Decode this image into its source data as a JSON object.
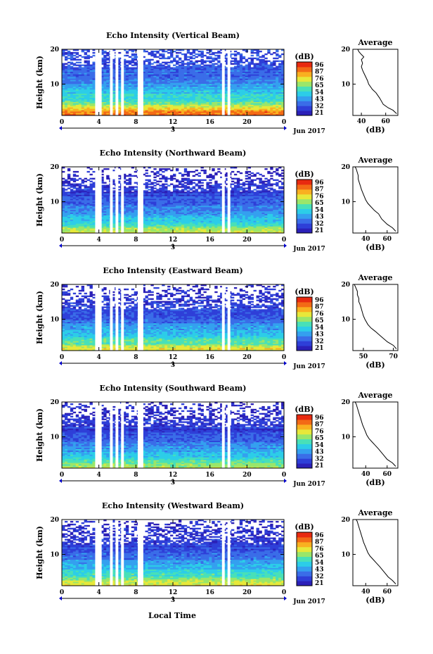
{
  "figure": {
    "xaxis_label": "Local Time",
    "colormap": [
      "#2b20b8",
      "#2e3fd8",
      "#3a6de8",
      "#34a0ef",
      "#2ccde8",
      "#48e0b8",
      "#9ae66a",
      "#e7e83a",
      "#f9b020",
      "#f36a16",
      "#e82a10"
    ]
  },
  "chart_data": [
    {
      "type": "heatmap",
      "title": "Echo Intensity (Vertical Beam)",
      "ylabel": "Height (km)",
      "y_ticks": [
        10,
        20
      ],
      "ylim": [
        1,
        20
      ],
      "x_ticks": [
        "0",
        "4",
        "8",
        "12",
        "16",
        "20",
        "0"
      ],
      "xlim": [
        0,
        24
      ],
      "date_ticks": [
        "3"
      ],
      "date_label": "Jun 2017",
      "gaps_hours": [
        [
          3.6,
          4.3
        ],
        [
          5.2,
          5.5
        ],
        [
          5.8,
          6.1
        ],
        [
          6.4,
          6.7
        ],
        [
          8.2,
          8.8
        ],
        [
          17.3,
          17.6
        ],
        [
          17.9,
          18.2
        ]
      ],
      "colorbar": {
        "label": "(dB)",
        "ticks": [
          "96",
          "87",
          "76",
          "65",
          "54",
          "43",
          "32",
          "21"
        ]
      },
      "profile": {
        "title": "Average",
        "xlabel": "(dB)",
        "x_ticks": [
          "40",
          "60"
        ],
        "xlim": [
          33,
          70
        ],
        "y_ticks": [
          10,
          20
        ],
        "points": [
          [
            69,
            1.5
          ],
          [
            66,
            2.5
          ],
          [
            62,
            3.2
          ],
          [
            58,
            4.2
          ],
          [
            55,
            6.0
          ],
          [
            52,
            7.5
          ],
          [
            49,
            8.5
          ],
          [
            46,
            10.0
          ],
          [
            45,
            11.0
          ],
          [
            43,
            12.5
          ],
          [
            42,
            13.2
          ],
          [
            41,
            14.0
          ],
          [
            40,
            15.0
          ],
          [
            41,
            16.0
          ],
          [
            40,
            17.0
          ],
          [
            42,
            17.8
          ],
          [
            40,
            18.5
          ],
          [
            38,
            19.3
          ],
          [
            37,
            20.0
          ]
        ]
      },
      "intensity_profile": [
        [
          1,
          0.9
        ],
        [
          2,
          0.84
        ],
        [
          3,
          0.7
        ],
        [
          4.5,
          0.55
        ],
        [
          6,
          0.46
        ],
        [
          8,
          0.38
        ],
        [
          10,
          0.3
        ],
        [
          12,
          0.24
        ],
        [
          14,
          0.2
        ],
        [
          16,
          0.17
        ],
        [
          18,
          0.16
        ],
        [
          20,
          0.14
        ]
      ],
      "white_above_km": 15
    },
    {
      "type": "heatmap",
      "title": "Echo Intensity (Northward Beam)",
      "ylabel": "Height (km)",
      "y_ticks": [
        10,
        20
      ],
      "ylim": [
        1,
        20
      ],
      "x_ticks": [
        "0",
        "4",
        "8",
        "12",
        "16",
        "20",
        "0"
      ],
      "xlim": [
        0,
        24
      ],
      "date_ticks": [
        "3"
      ],
      "date_label": "Jun 2017",
      "gaps_hours": [
        [
          3.6,
          4.3
        ],
        [
          5.2,
          5.5
        ],
        [
          5.8,
          6.1
        ],
        [
          6.4,
          6.7
        ],
        [
          8.2,
          8.8
        ],
        [
          17.3,
          17.6
        ],
        [
          17.9,
          18.2
        ]
      ],
      "colorbar": {
        "label": "(dB)",
        "ticks": [
          "96",
          "87",
          "76",
          "65",
          "54",
          "43",
          "32",
          "21"
        ]
      },
      "profile": {
        "title": "Average",
        "xlabel": "(dB)",
        "x_ticks": [
          "40",
          "60"
        ],
        "xlim": [
          28,
          70
        ],
        "y_ticks": [
          10,
          20
        ],
        "points": [
          [
            68,
            1.5
          ],
          [
            65,
            2.5
          ],
          [
            60,
            3.5
          ],
          [
            55,
            5.0
          ],
          [
            52,
            6.5
          ],
          [
            48,
            7.5
          ],
          [
            45,
            8.5
          ],
          [
            42,
            9.5
          ],
          [
            40,
            10.5
          ],
          [
            38,
            12.0
          ],
          [
            36,
            13.5
          ],
          [
            35,
            14.5
          ],
          [
            34,
            15.5
          ],
          [
            33,
            16.5
          ],
          [
            33,
            17.5
          ],
          [
            32,
            18.5
          ],
          [
            31,
            19.5
          ],
          [
            30,
            20.0
          ]
        ]
      },
      "intensity_profile": [
        [
          1,
          0.7
        ],
        [
          2,
          0.62
        ],
        [
          3,
          0.52
        ],
        [
          4.5,
          0.42
        ],
        [
          6,
          0.35
        ],
        [
          8,
          0.28
        ],
        [
          10,
          0.2
        ],
        [
          12,
          0.15
        ],
        [
          14,
          0.12
        ],
        [
          16,
          0.1
        ],
        [
          18,
          0.08
        ],
        [
          20,
          0.07
        ]
      ],
      "white_above_km": 13
    },
    {
      "type": "heatmap",
      "title": "Echo Intensity (Eastward Beam)",
      "ylabel": "Height (km)",
      "y_ticks": [
        10,
        20
      ],
      "ylim": [
        1,
        20
      ],
      "x_ticks": [
        "0",
        "4",
        "8",
        "12",
        "16",
        "20",
        "0"
      ],
      "xlim": [
        0,
        24
      ],
      "date_ticks": [
        "3"
      ],
      "date_label": "Jun 2017",
      "gaps_hours": [
        [
          3.6,
          4.3
        ],
        [
          5.2,
          5.5
        ],
        [
          5.8,
          6.1
        ],
        [
          6.4,
          6.7
        ],
        [
          8.2,
          8.8
        ],
        [
          17.3,
          17.6
        ],
        [
          17.9,
          18.2
        ]
      ],
      "colorbar": {
        "label": "(dB)",
        "ticks": [
          "96",
          "87",
          "76",
          "65",
          "54",
          "43",
          "32",
          "21"
        ]
      },
      "profile": {
        "title": "Average",
        "xlabel": "(dB)",
        "x_ticks": [
          "50",
          "70"
        ],
        "xlim": [
          43,
          73
        ],
        "y_ticks": [
          10,
          20
        ],
        "points": [
          [
            72,
            1.5
          ],
          [
            70,
            2.5
          ],
          [
            66,
            3.5
          ],
          [
            62,
            5.0
          ],
          [
            58,
            6.5
          ],
          [
            55,
            7.5
          ],
          [
            53,
            8.5
          ],
          [
            51,
            10.0
          ],
          [
            50,
            11.0
          ],
          [
            49,
            12.5
          ],
          [
            48,
            14.0
          ],
          [
            47,
            15.0
          ],
          [
            47,
            16.0
          ],
          [
            46,
            17.0
          ],
          [
            46,
            18.0
          ],
          [
            45,
            19.0
          ],
          [
            44,
            20.0
          ]
        ]
      },
      "intensity_profile": [
        [
          1,
          0.72
        ],
        [
          2,
          0.64
        ],
        [
          3,
          0.55
        ],
        [
          4.5,
          0.46
        ],
        [
          6,
          0.38
        ],
        [
          8,
          0.3
        ],
        [
          10,
          0.22
        ],
        [
          12,
          0.16
        ],
        [
          14,
          0.12
        ],
        [
          16,
          0.1
        ],
        [
          18,
          0.08
        ],
        [
          20,
          0.07
        ]
      ],
      "white_above_km": 13
    },
    {
      "type": "heatmap",
      "title": "Echo Intensity (Southward Beam)",
      "ylabel": "Height (km)",
      "y_ticks": [
        10,
        20
      ],
      "ylim": [
        1,
        20
      ],
      "x_ticks": [
        "0",
        "4",
        "8",
        "12",
        "16",
        "20",
        "0"
      ],
      "xlim": [
        0,
        24
      ],
      "date_ticks": [
        "3"
      ],
      "date_label": "Jun 2017",
      "gaps_hours": [
        [
          3.6,
          4.3
        ],
        [
          5.2,
          5.5
        ],
        [
          5.8,
          6.1
        ],
        [
          6.4,
          6.7
        ],
        [
          8.2,
          8.8
        ],
        [
          17.3,
          17.6
        ],
        [
          17.9,
          18.2
        ]
      ],
      "colorbar": {
        "label": "(dB)",
        "ticks": [
          "96",
          "87",
          "76",
          "65",
          "54",
          "43",
          "32",
          "21"
        ]
      },
      "profile": {
        "title": "Average",
        "xlabel": "(dB)",
        "x_ticks": [
          "40",
          "60"
        ],
        "xlim": [
          28,
          70
        ],
        "y_ticks": [
          10,
          20
        ],
        "points": [
          [
            68,
            1.5
          ],
          [
            65,
            2.5
          ],
          [
            60,
            3.5
          ],
          [
            56,
            5.0
          ],
          [
            52,
            6.5
          ],
          [
            49,
            7.5
          ],
          [
            46,
            8.5
          ],
          [
            43,
            9.5
          ],
          [
            41,
            10.5
          ],
          [
            39,
            12.0
          ],
          [
            37,
            13.5
          ],
          [
            36,
            14.5
          ],
          [
            35,
            15.5
          ],
          [
            34,
            16.5
          ],
          [
            33,
            17.5
          ],
          [
            32,
            18.5
          ],
          [
            31,
            19.5
          ],
          [
            30,
            20.0
          ]
        ]
      },
      "intensity_profile": [
        [
          1,
          0.66
        ],
        [
          2,
          0.58
        ],
        [
          3,
          0.5
        ],
        [
          4.5,
          0.4
        ],
        [
          6,
          0.33
        ],
        [
          8,
          0.26
        ],
        [
          10,
          0.19
        ],
        [
          12,
          0.14
        ],
        [
          14,
          0.11
        ],
        [
          16,
          0.09
        ],
        [
          18,
          0.08
        ],
        [
          20,
          0.07
        ]
      ],
      "white_above_km": 13
    },
    {
      "type": "heatmap",
      "title": "Echo Intensity (Westward Beam)",
      "ylabel": "Height (km)",
      "y_ticks": [
        10,
        20
      ],
      "ylim": [
        1,
        20
      ],
      "x_ticks": [
        "0",
        "4",
        "8",
        "12",
        "16",
        "20",
        "0"
      ],
      "xlim": [
        0,
        24
      ],
      "date_ticks": [
        "3"
      ],
      "date_label": "Jun 2017",
      "gaps_hours": [
        [
          3.6,
          4.3
        ],
        [
          5.2,
          5.5
        ],
        [
          5.8,
          6.1
        ],
        [
          6.4,
          6.7
        ],
        [
          8.2,
          8.8
        ],
        [
          17.3,
          17.6
        ],
        [
          17.9,
          18.2
        ]
      ],
      "colorbar": {
        "label": "(dB)",
        "ticks": [
          "96",
          "87",
          "76",
          "65",
          "54",
          "43",
          "32",
          "21"
        ]
      },
      "profile": {
        "title": "Average",
        "xlabel": "(dB)",
        "x_ticks": [
          "40",
          "60"
        ],
        "xlim": [
          28,
          70
        ],
        "y_ticks": [
          10,
          20
        ],
        "points": [
          [
            68,
            1.5
          ],
          [
            65,
            2.5
          ],
          [
            61,
            3.5
          ],
          [
            57,
            5.0
          ],
          [
            53,
            6.5
          ],
          [
            50,
            7.5
          ],
          [
            47,
            8.5
          ],
          [
            44,
            9.5
          ],
          [
            42,
            10.5
          ],
          [
            40,
            12.0
          ],
          [
            38,
            13.5
          ],
          [
            37,
            14.5
          ],
          [
            36,
            15.5
          ],
          [
            35,
            16.5
          ],
          [
            34,
            17.5
          ],
          [
            33,
            18.5
          ],
          [
            32,
            19.5
          ],
          [
            31,
            20.0
          ]
        ]
      },
      "intensity_profile": [
        [
          1,
          0.74
        ],
        [
          2,
          0.66
        ],
        [
          3,
          0.55
        ],
        [
          4.5,
          0.45
        ],
        [
          6,
          0.37
        ],
        [
          8,
          0.29
        ],
        [
          10,
          0.21
        ],
        [
          12,
          0.16
        ],
        [
          14,
          0.12
        ],
        [
          16,
          0.1
        ],
        [
          18,
          0.09
        ],
        [
          20,
          0.08
        ]
      ],
      "white_above_km": 13
    }
  ]
}
